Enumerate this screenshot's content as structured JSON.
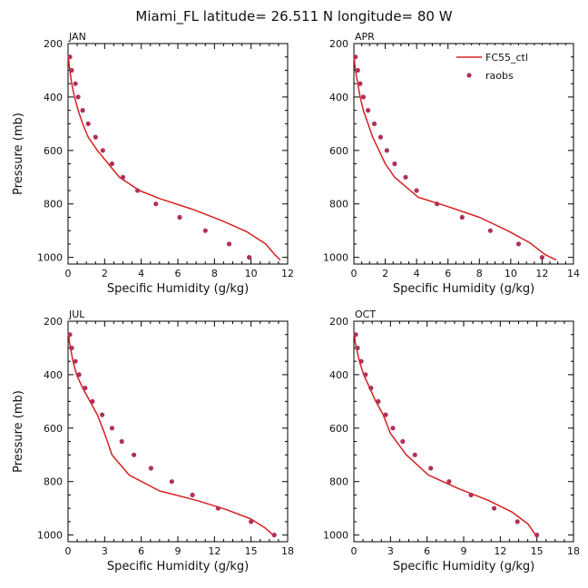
{
  "figure": {
    "title": "Miami_FL  latitude= 26.511 N longitude= 80 W"
  },
  "colors": {
    "model_line": "#d62020",
    "obs_marker": "#b0305a",
    "axis": "#000000"
  },
  "chart_data": [
    {
      "type": "line",
      "panel_label": "JAN",
      "xlabel": "Specific Humidity (g/kg)",
      "ylabel": "Pressure (mb)",
      "xlim": [
        0,
        12
      ],
      "ylim": [
        200,
        1025
      ],
      "y_inverted": true,
      "xticks": [
        0,
        2,
        4,
        6,
        8,
        10,
        12
      ],
      "yticks": [
        200,
        400,
        600,
        800,
        1000
      ],
      "legend": null,
      "series": [
        {
          "name": "FC55_ctl",
          "style": "line",
          "points": [
            [
              0.02,
              250
            ],
            [
              0.05,
              275
            ],
            [
              0.1,
              300
            ],
            [
              0.2,
              350
            ],
            [
              0.35,
              400
            ],
            [
              0.55,
              450
            ],
            [
              0.8,
              500
            ],
            [
              1.1,
              550
            ],
            [
              1.6,
              600
            ],
            [
              2.2,
              650
            ],
            [
              2.8,
              700
            ],
            [
              3.9,
              750
            ],
            [
              5.0,
              780
            ],
            [
              6.8,
              820
            ],
            [
              8.5,
              865
            ],
            [
              9.8,
              905
            ],
            [
              10.8,
              950
            ],
            [
              11.3,
              990
            ],
            [
              11.6,
              1010
            ]
          ]
        },
        {
          "name": "raobs",
          "style": "marker",
          "points": [
            [
              0.1,
              250
            ],
            [
              0.2,
              300
            ],
            [
              0.4,
              350
            ],
            [
              0.55,
              400
            ],
            [
              0.8,
              450
            ],
            [
              1.1,
              500
            ],
            [
              1.5,
              550
            ],
            [
              1.9,
              600
            ],
            [
              2.4,
              650
            ],
            [
              3.0,
              700
            ],
            [
              3.8,
              750
            ],
            [
              4.8,
              800
            ],
            [
              6.1,
              850
            ],
            [
              7.5,
              900
            ],
            [
              8.8,
              950
            ],
            [
              9.9,
              1000
            ]
          ]
        }
      ]
    },
    {
      "type": "line",
      "panel_label": "APR",
      "xlabel": "Specific Humidity (g/kg)",
      "ylabel": "",
      "xlim": [
        0,
        14
      ],
      "ylim": [
        200,
        1025
      ],
      "y_inverted": true,
      "xticks": [
        0,
        2,
        4,
        6,
        8,
        10,
        12,
        14
      ],
      "yticks": [
        200,
        400,
        600,
        800,
        1000
      ],
      "legend": {
        "position": "top-right",
        "entries": [
          "FC55_ctl",
          "raobs"
        ]
      },
      "series": [
        {
          "name": "FC55_ctl",
          "style": "line",
          "points": [
            [
              0.02,
              250
            ],
            [
              0.05,
              275
            ],
            [
              0.1,
              300
            ],
            [
              0.25,
              350
            ],
            [
              0.4,
              400
            ],
            [
              0.6,
              450
            ],
            [
              0.9,
              500
            ],
            [
              1.2,
              550
            ],
            [
              1.6,
              600
            ],
            [
              2.0,
              650
            ],
            [
              2.6,
              700
            ],
            [
              3.4,
              740
            ],
            [
              4.1,
              775
            ],
            [
              6.0,
              810
            ],
            [
              8.0,
              850
            ],
            [
              9.8,
              900
            ],
            [
              11.2,
              945
            ],
            [
              12.2,
              990
            ],
            [
              12.9,
              1010
            ]
          ]
        },
        {
          "name": "raobs",
          "style": "marker",
          "points": [
            [
              0.1,
              250
            ],
            [
              0.25,
              300
            ],
            [
              0.4,
              350
            ],
            [
              0.6,
              400
            ],
            [
              0.9,
              450
            ],
            [
              1.3,
              500
            ],
            [
              1.7,
              550
            ],
            [
              2.1,
              600
            ],
            [
              2.6,
              650
            ],
            [
              3.3,
              700
            ],
            [
              4.0,
              750
            ],
            [
              5.3,
              800
            ],
            [
              6.9,
              850
            ],
            [
              8.7,
              900
            ],
            [
              10.5,
              950
            ],
            [
              12.0,
              1000
            ]
          ]
        }
      ]
    },
    {
      "type": "line",
      "panel_label": "JUL",
      "xlabel": "Specific Humidity (g/kg)",
      "ylabel": "Pressure (mb)",
      "xlim": [
        0,
        18
      ],
      "ylim": [
        200,
        1025
      ],
      "y_inverted": true,
      "xticks": [
        0,
        3,
        6,
        9,
        12,
        15,
        18
      ],
      "yticks": [
        200,
        400,
        600,
        800,
        1000
      ],
      "legend": null,
      "series": [
        {
          "name": "FC55_ctl",
          "style": "line",
          "points": [
            [
              0.05,
              250
            ],
            [
              0.1,
              275
            ],
            [
              0.2,
              300
            ],
            [
              0.4,
              350
            ],
            [
              0.7,
              400
            ],
            [
              1.2,
              450
            ],
            [
              1.8,
              500
            ],
            [
              2.4,
              550
            ],
            [
              3.0,
              620
            ],
            [
              3.6,
              700
            ],
            [
              5.0,
              775
            ],
            [
              7.5,
              835
            ],
            [
              10.5,
              870
            ],
            [
              13.0,
              905
            ],
            [
              15.0,
              940
            ],
            [
              16.2,
              975
            ],
            [
              16.8,
              1000
            ]
          ]
        },
        {
          "name": "raobs",
          "style": "marker",
          "points": [
            [
              0.15,
              250
            ],
            [
              0.3,
              300
            ],
            [
              0.6,
              350
            ],
            [
              0.9,
              400
            ],
            [
              1.4,
              450
            ],
            [
              2.0,
              500
            ],
            [
              2.8,
              550
            ],
            [
              3.6,
              600
            ],
            [
              4.4,
              650
            ],
            [
              5.4,
              700
            ],
            [
              6.8,
              750
            ],
            [
              8.5,
              800
            ],
            [
              10.2,
              850
            ],
            [
              12.3,
              900
            ],
            [
              15.0,
              950
            ],
            [
              16.9,
              1000
            ]
          ]
        }
      ]
    },
    {
      "type": "line",
      "panel_label": "OCT",
      "xlabel": "Specific Humidity (g/kg)",
      "ylabel": "",
      "xlim": [
        0,
        18
      ],
      "ylim": [
        200,
        1025
      ],
      "y_inverted": true,
      "xticks": [
        0,
        3,
        6,
        9,
        12,
        15,
        18
      ],
      "yticks": [
        200,
        400,
        600,
        800,
        1000
      ],
      "legend": null,
      "series": [
        {
          "name": "FC55_ctl",
          "style": "line",
          "points": [
            [
              0.05,
              250
            ],
            [
              0.1,
              275
            ],
            [
              0.2,
              300
            ],
            [
              0.45,
              350
            ],
            [
              0.8,
              400
            ],
            [
              1.3,
              450
            ],
            [
              1.8,
              500
            ],
            [
              2.4,
              550
            ],
            [
              3.0,
              620
            ],
            [
              4.3,
              700
            ],
            [
              6.1,
              775
            ],
            [
              8.5,
              825
            ],
            [
              11.0,
              870
            ],
            [
              13.0,
              915
            ],
            [
              14.3,
              960
            ],
            [
              14.9,
              1000
            ]
          ]
        },
        {
          "name": "raobs",
          "style": "marker",
          "points": [
            [
              0.15,
              250
            ],
            [
              0.3,
              300
            ],
            [
              0.6,
              350
            ],
            [
              0.95,
              400
            ],
            [
              1.4,
              450
            ],
            [
              2.0,
              500
            ],
            [
              2.6,
              550
            ],
            [
              3.2,
              600
            ],
            [
              4.0,
              650
            ],
            [
              5.0,
              700
            ],
            [
              6.3,
              750
            ],
            [
              7.8,
              800
            ],
            [
              9.6,
              850
            ],
            [
              11.5,
              900
            ],
            [
              13.4,
              950
            ],
            [
              15.0,
              1000
            ]
          ]
        }
      ]
    }
  ]
}
